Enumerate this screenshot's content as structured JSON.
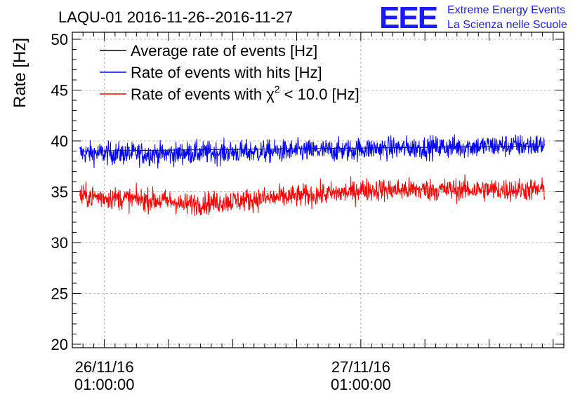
{
  "chart_data": {
    "type": "line",
    "title": "LAQU-01 2016-11-26--2016-11-27",
    "xlabel": "",
    "ylabel": "Rate [Hz]",
    "ylim": [
      20,
      50
    ],
    "y_ticks": [
      20,
      25,
      30,
      35,
      40,
      45,
      50
    ],
    "x_ticks": [
      {
        "line1": "26/11/16",
        "line2": "01:00:00",
        "hour": 1
      },
      {
        "line1": "27/11/16",
        "line2": "01:00:00",
        "hour": 25
      }
    ],
    "x_range_hours": [
      -2,
      44
    ],
    "data_range_hours": [
      -1.3,
      42.2
    ],
    "grid": true,
    "legend_position": "top-left",
    "series": [
      {
        "name": "Average rate of events [Hz]",
        "color": "#000000",
        "segments": [
          {
            "start_hour": -1.3,
            "end_hour": 42.2,
            "start": 39.0,
            "end": 39.5
          }
        ],
        "noise": 0.0
      },
      {
        "name": "Rate of events with hits [Hz]",
        "color": "#0000ff",
        "segments": [
          {
            "start_hour": -1.3,
            "end_hour": 8,
            "start": 38.8,
            "end": 38.7
          },
          {
            "start_hour": 8,
            "end_hour": 24.5,
            "start": 38.8,
            "end": 39.1
          },
          {
            "start_hour": 24.5,
            "end_hour": 42.2,
            "start": 39.2,
            "end": 39.6
          }
        ],
        "noise": 0.8
      },
      {
        "name": "Rate of events with χ² < 10.0 [Hz]",
        "color": "#ff0000",
        "segments": [
          {
            "start_hour": -1.3,
            "end_hour": 8,
            "start": 34.6,
            "end": 34.0
          },
          {
            "start_hour": 8,
            "end_hour": 24.5,
            "start": 33.7,
            "end": 35.0
          },
          {
            "start_hour": 24.5,
            "end_hour": 42.2,
            "start": 35.2,
            "end": 35.2
          }
        ],
        "noise": 0.8
      }
    ],
    "legend_labels": {
      "avg": "Average rate of events [Hz]",
      "hits": "Rate of events with hits [Hz]",
      "chi_prefix": "Rate of events with χ",
      "chi_sup": "2",
      "chi_suffix": " < 10.0 [Hz]"
    }
  },
  "logo": {
    "mark": "EEE",
    "line1": "Extreme Energy Events",
    "line2": "La Scienza nelle Scuole"
  }
}
